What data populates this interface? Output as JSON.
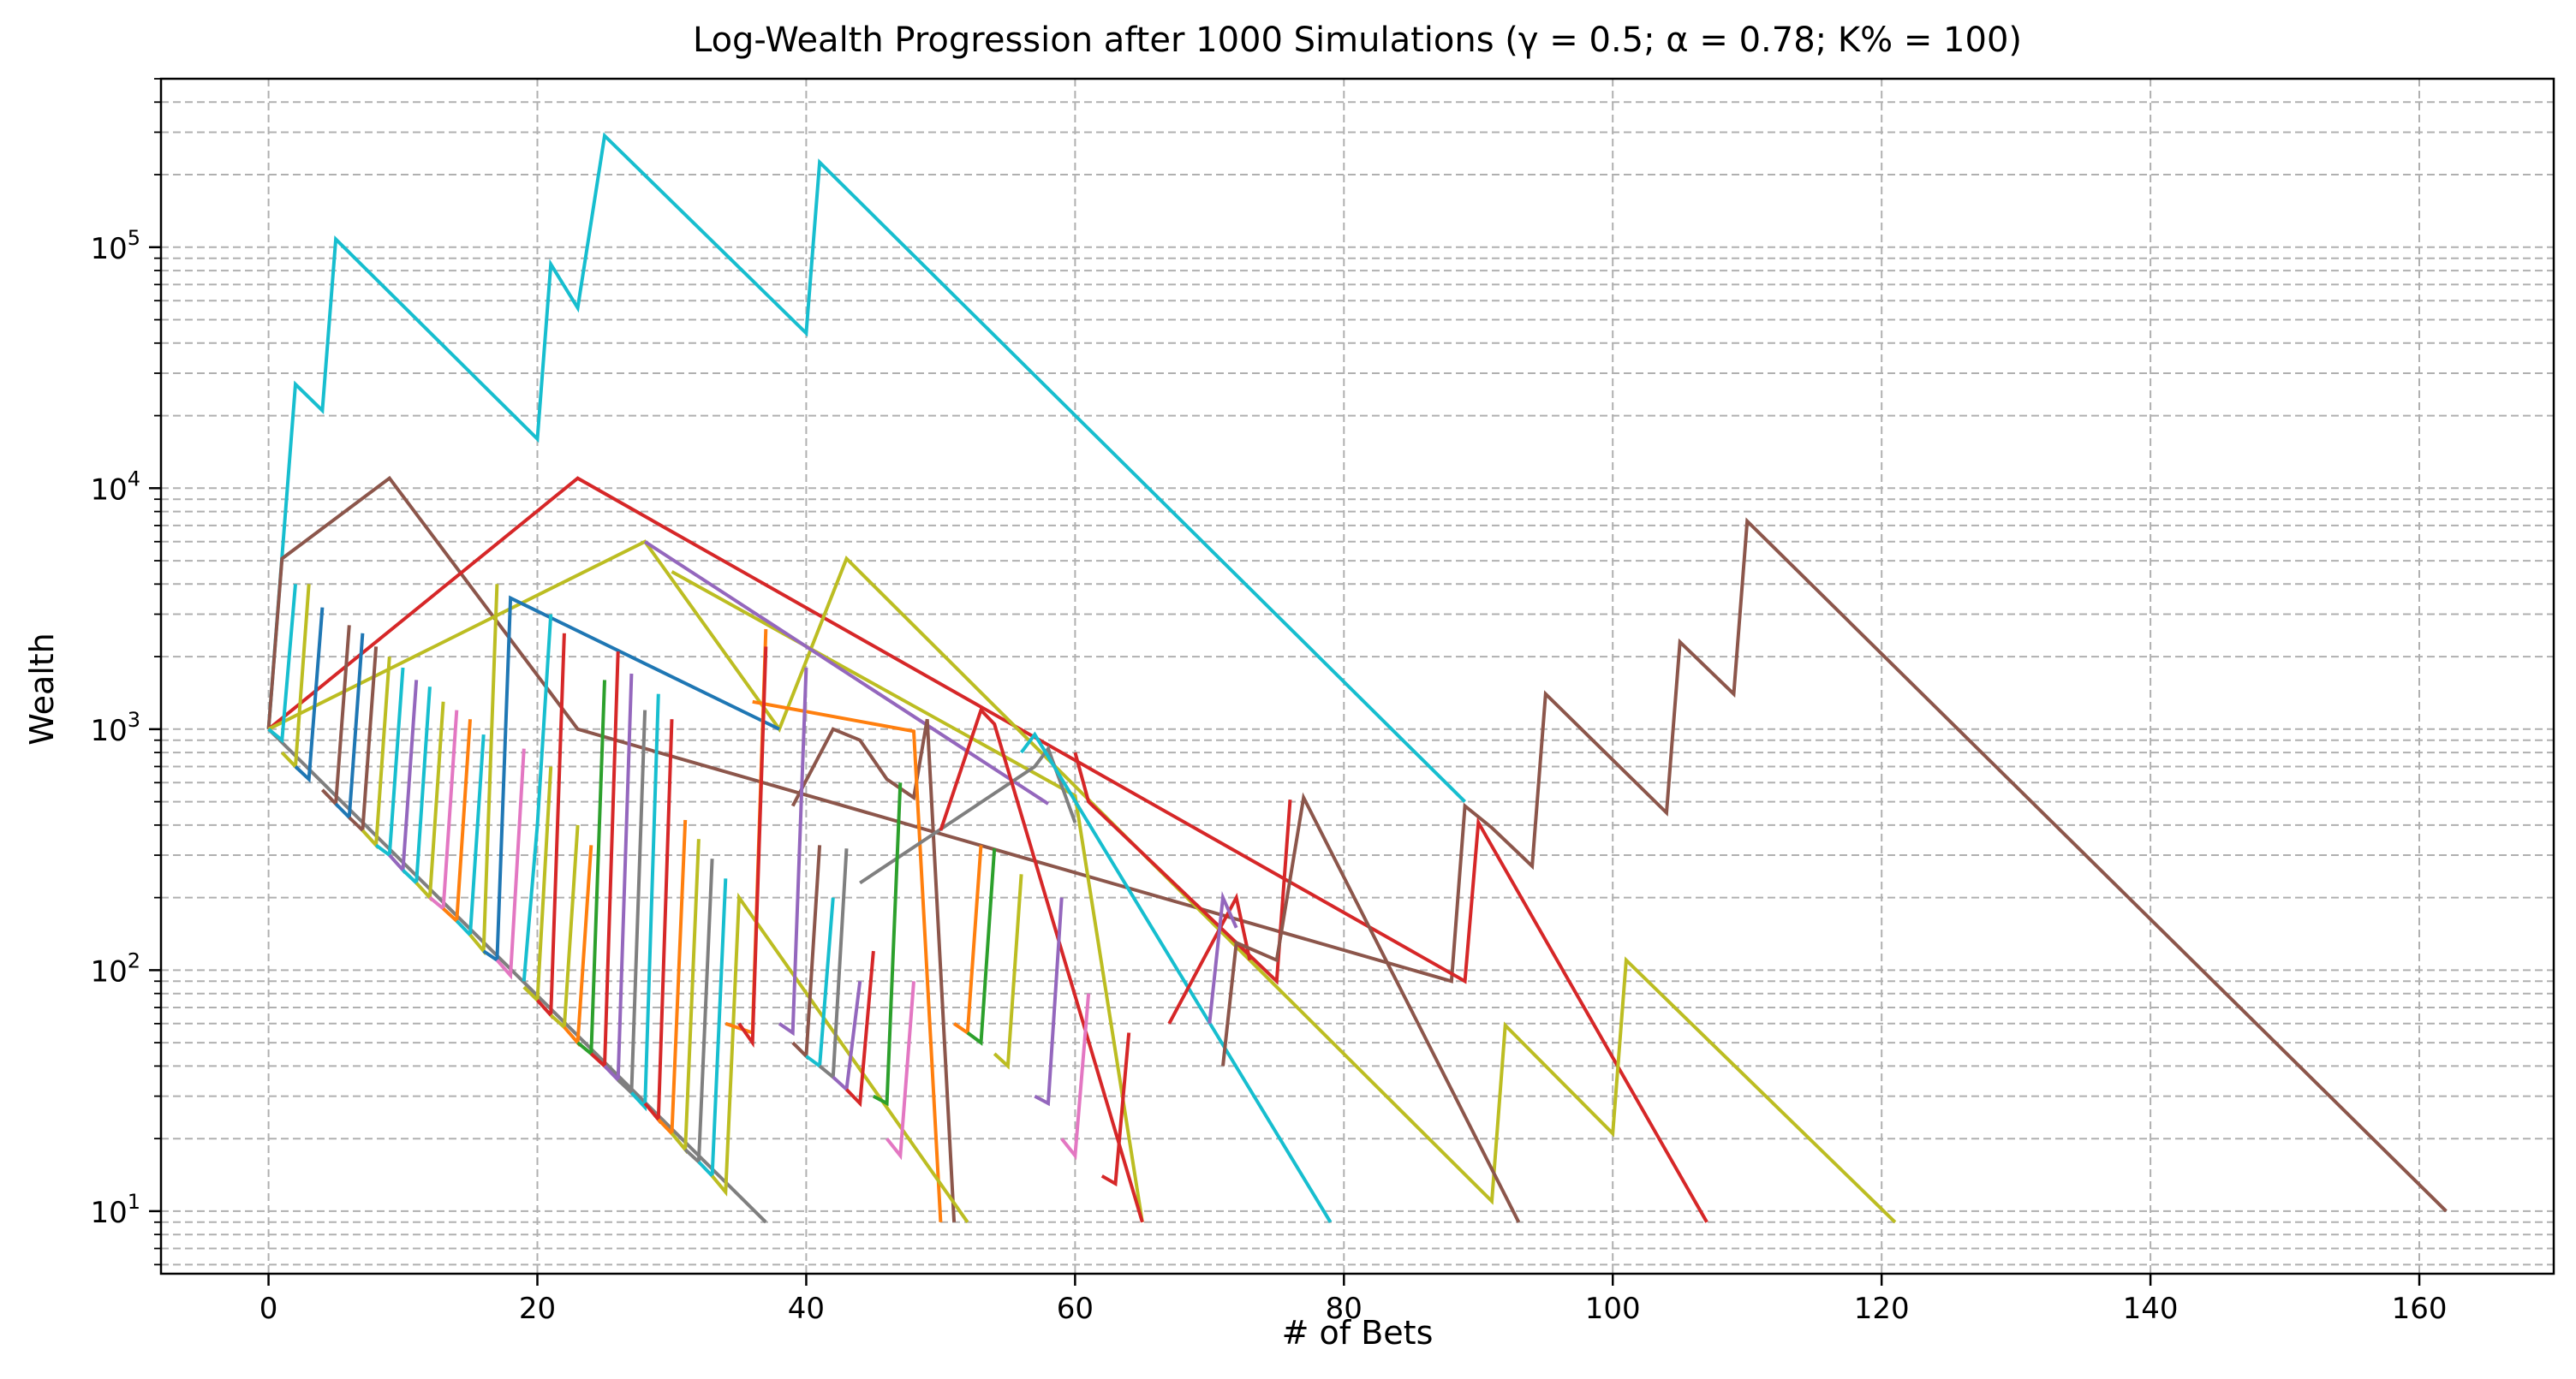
{
  "chart_data": {
    "type": "line",
    "title": "Log-Wealth Progression after 1000 Simulations (γ = 0.5; α = 0.78; K% = 100)",
    "xlabel": "# of Bets",
    "ylabel": "Wealth",
    "xlim": [
      -8,
      170
    ],
    "ylim": [
      5.5,
      500000
    ],
    "yscale": "log",
    "grid": "both-major-minor-dashed",
    "legend": "none",
    "xticks": [
      0,
      20,
      40,
      60,
      80,
      100,
      120,
      140,
      160
    ],
    "xtick_labels": [
      "0",
      "20",
      "40",
      "60",
      "80",
      "100",
      "120",
      "140",
      "160"
    ],
    "yticks": [
      10,
      100,
      1000,
      10000,
      100000
    ],
    "ytick_base": "10",
    "ytick_exponents": [
      "1",
      "2",
      "3",
      "4",
      "5"
    ],
    "down_ratio": 0.78,
    "colors": {
      "blue": "#1f77b4",
      "orange": "#ff7f0e",
      "green": "#2ca02c",
      "red": "#d62728",
      "purple": "#9467bd",
      "brown": "#8c564b",
      "pink": "#e377c2",
      "gray": "#7f7f7f",
      "olive": "#bcbd22",
      "cyan": "#17becf"
    },
    "series": [
      {
        "color": "cyan",
        "x": [
          0,
          2,
          4,
          5,
          20,
          21,
          23,
          25,
          40,
          41,
          89
        ],
        "y": [
          1000,
          27000,
          21000,
          108000,
          16000,
          85000,
          56000,
          290000,
          44000,
          225000,
          500
        ]
      },
      {
        "color": "brown",
        "x": [
          0,
          1,
          9,
          23,
          88,
          89,
          91,
          94,
          95,
          104,
          105,
          109,
          110,
          162
        ],
        "y": [
          1000,
          5100,
          11000,
          1000,
          90,
          480,
          390,
          270,
          1400,
          450,
          2300,
          1400,
          7300,
          10
        ]
      },
      {
        "color": "red",
        "x": [
          0,
          23,
          89,
          90,
          107
        ],
        "y": [
          1000,
          11000,
          90,
          410,
          9
        ]
      },
      {
        "color": "olive",
        "x": [
          0,
          28,
          38,
          43,
          91,
          92,
          100,
          101,
          121
        ],
        "y": [
          1000,
          6000,
          1000,
          5100,
          11,
          59,
          21,
          110,
          9
        ]
      },
      {
        "color": "olive",
        "x": [
          30,
          60,
          65
        ],
        "y": [
          4500,
          530,
          9
        ]
      },
      {
        "color": "purple",
        "x": [
          28,
          58
        ],
        "y": [
          6000,
          490
        ]
      },
      {
        "color": "brown",
        "x": [
          39,
          42,
          44,
          46,
          48,
          49,
          51
        ],
        "y": [
          480,
          1000,
          900,
          620,
          520,
          1100,
          9
        ]
      },
      {
        "color": "orange",
        "x": [
          36,
          48,
          50
        ],
        "y": [
          1300,
          980,
          9
        ]
      },
      {
        "color": "gray",
        "x": [
          44,
          57,
          58,
          60
        ],
        "y": [
          230,
          700,
          830,
          410
        ]
      },
      {
        "color": "red",
        "x": [
          50,
          53,
          54,
          65
        ],
        "y": [
          380,
          1200,
          1050,
          9
        ]
      },
      {
        "color": "cyan",
        "x": [
          56,
          57,
          79
        ],
        "y": [
          800,
          950,
          9
        ]
      },
      {
        "color": "red",
        "x": [
          60,
          61,
          75,
          76
        ],
        "y": [
          800,
          500,
          90,
          510
        ]
      },
      {
        "color": "red",
        "x": [
          67,
          72,
          73
        ],
        "y": [
          60,
          200,
          110
        ]
      },
      {
        "color": "purple",
        "x": [
          70,
          71,
          72
        ],
        "y": [
          60,
          200,
          150
        ]
      },
      {
        "color": "brown",
        "x": [
          71,
          72,
          75,
          77,
          93
        ],
        "y": [
          40,
          130,
          110,
          520,
          9
        ]
      },
      {
        "color": "gray",
        "x": [
          0,
          37
        ],
        "y": [
          1000,
          9
        ]
      },
      {
        "color": "cyan",
        "x": [
          0,
          1,
          2
        ],
        "y": [
          1000,
          900,
          4000
        ]
      },
      {
        "color": "olive",
        "x": [
          1,
          2,
          3
        ],
        "y": [
          800,
          700,
          4000
        ]
      },
      {
        "color": "blue",
        "x": [
          2,
          3,
          4
        ],
        "y": [
          700,
          620,
          3200
        ]
      },
      {
        "color": "brown",
        "x": [
          4,
          5,
          6
        ],
        "y": [
          560,
          490,
          2700
        ]
      },
      {
        "color": "blue",
        "x": [
          5,
          6,
          7
        ],
        "y": [
          490,
          430,
          2500
        ]
      },
      {
        "color": "brown",
        "x": [
          6,
          7,
          8
        ],
        "y": [
          430,
          380,
          2200
        ]
      },
      {
        "color": "olive",
        "x": [
          7,
          8,
          9
        ],
        "y": [
          380,
          330,
          2000
        ]
      },
      {
        "color": "cyan",
        "x": [
          8,
          9,
          10
        ],
        "y": [
          330,
          300,
          1800
        ]
      },
      {
        "color": "purple",
        "x": [
          9,
          10,
          11
        ],
        "y": [
          300,
          260,
          1600
        ]
      },
      {
        "color": "cyan",
        "x": [
          10,
          11,
          12
        ],
        "y": [
          260,
          230,
          1500
        ]
      },
      {
        "color": "olive",
        "x": [
          11,
          12,
          13
        ],
        "y": [
          230,
          200,
          1300
        ]
      },
      {
        "color": "pink",
        "x": [
          12,
          13,
          14
        ],
        "y": [
          200,
          180,
          1200
        ]
      },
      {
        "color": "orange",
        "x": [
          13,
          14,
          15
        ],
        "y": [
          180,
          160,
          1100
        ]
      },
      {
        "color": "cyan",
        "x": [
          14,
          15,
          16
        ],
        "y": [
          160,
          140,
          950
        ]
      },
      {
        "color": "olive",
        "x": [
          15,
          16,
          17
        ],
        "y": [
          140,
          120,
          4000
        ]
      },
      {
        "color": "blue",
        "x": [
          16,
          17,
          18,
          38
        ],
        "y": [
          120,
          110,
          3500,
          1000
        ]
      },
      {
        "color": "pink",
        "x": [
          17,
          18,
          19
        ],
        "y": [
          110,
          95,
          830
        ]
      },
      {
        "color": "olive",
        "x": [
          19,
          20,
          21
        ],
        "y": [
          85,
          75,
          700
        ]
      },
      {
        "color": "cyan",
        "x": [
          19,
          20,
          21
        ],
        "y": [
          90,
          400,
          3000
        ]
      },
      {
        "color": "red",
        "x": [
          20,
          21,
          22
        ],
        "y": [
          75,
          65,
          2500
        ]
      },
      {
        "color": "olive",
        "x": [
          21,
          22,
          23
        ],
        "y": [
          65,
          58,
          400
        ]
      },
      {
        "color": "orange",
        "x": [
          22,
          23,
          24
        ],
        "y": [
          58,
          50,
          330
        ]
      },
      {
        "color": "green",
        "x": [
          23,
          24,
          25
        ],
        "y": [
          50,
          45,
          1600
        ]
      },
      {
        "color": "red",
        "x": [
          24,
          25,
          26
        ],
        "y": [
          45,
          40,
          2100
        ]
      },
      {
        "color": "purple",
        "x": [
          25,
          26,
          27
        ],
        "y": [
          40,
          35,
          1700
        ]
      },
      {
        "color": "gray",
        "x": [
          26,
          27,
          28
        ],
        "y": [
          35,
          31,
          1200
        ]
      },
      {
        "color": "cyan",
        "x": [
          27,
          28,
          29
        ],
        "y": [
          31,
          27,
          1400
        ]
      },
      {
        "color": "red",
        "x": [
          28,
          29,
          30
        ],
        "y": [
          28,
          24,
          1100
        ]
      },
      {
        "color": "orange",
        "x": [
          29,
          30,
          31
        ],
        "y": [
          24,
          21,
          420
        ]
      },
      {
        "color": "olive",
        "x": [
          30,
          31,
          32
        ],
        "y": [
          21,
          18,
          350
        ]
      },
      {
        "color": "gray",
        "x": [
          31,
          32,
          33
        ],
        "y": [
          18,
          16,
          290
        ]
      },
      {
        "color": "cyan",
        "x": [
          32,
          33,
          34
        ],
        "y": [
          16,
          14,
          240
        ]
      },
      {
        "color": "olive",
        "x": [
          33,
          34,
          35,
          52
        ],
        "y": [
          14,
          12,
          200,
          9
        ]
      },
      {
        "color": "orange",
        "x": [
          34,
          36,
          37
        ],
        "y": [
          60,
          55,
          2600
        ]
      },
      {
        "color": "red",
        "x": [
          35,
          36,
          37
        ],
        "y": [
          60,
          50,
          2200
        ]
      },
      {
        "color": "purple",
        "x": [
          38,
          39,
          40
        ],
        "y": [
          60,
          55,
          1800
        ]
      },
      {
        "color": "brown",
        "x": [
          39,
          40,
          41
        ],
        "y": [
          50,
          44,
          330
        ]
      },
      {
        "color": "cyan",
        "x": [
          40,
          41,
          42
        ],
        "y": [
          44,
          40,
          200
        ]
      },
      {
        "color": "gray",
        "x": [
          41,
          42,
          43
        ],
        "y": [
          40,
          36,
          320
        ]
      },
      {
        "color": "green",
        "x": [
          45,
          46,
          47
        ],
        "y": [
          30,
          28,
          600
        ]
      },
      {
        "color": "purple",
        "x": [
          42,
          43,
          44
        ],
        "y": [
          36,
          32,
          90
        ]
      },
      {
        "color": "red",
        "x": [
          43,
          44,
          45
        ],
        "y": [
          32,
          28,
          120
        ]
      },
      {
        "color": "pink",
        "x": [
          46,
          47,
          48
        ],
        "y": [
          20,
          17,
          90
        ]
      },
      {
        "color": "orange",
        "x": [
          51,
          52,
          53
        ],
        "y": [
          60,
          55,
          330
        ]
      },
      {
        "color": "green",
        "x": [
          52,
          53,
          54
        ],
        "y": [
          55,
          50,
          320
        ]
      },
      {
        "color": "olive",
        "x": [
          54,
          55,
          56
        ],
        "y": [
          45,
          40,
          250
        ]
      },
      {
        "color": "purple",
        "x": [
          57,
          58,
          59
        ],
        "y": [
          30,
          28,
          200
        ]
      },
      {
        "color": "pink",
        "x": [
          59,
          60,
          61
        ],
        "y": [
          20,
          17,
          80
        ]
      },
      {
        "color": "red",
        "x": [
          62,
          63,
          64
        ],
        "y": [
          14,
          13,
          55
        ]
      }
    ]
  }
}
